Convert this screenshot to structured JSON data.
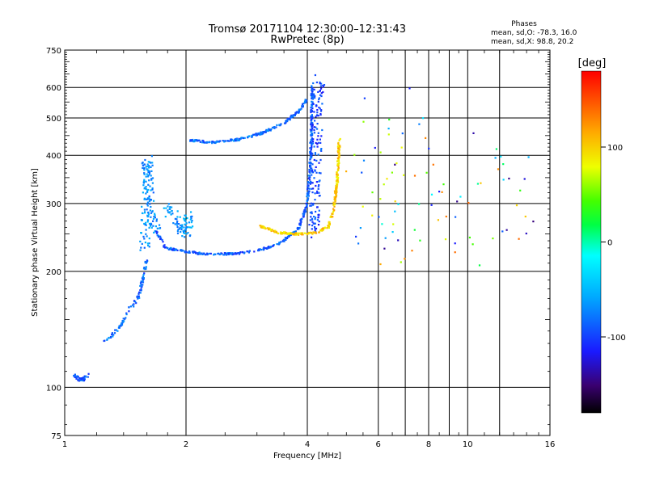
{
  "chart_data": {
    "type": "scatter",
    "title": "Tromsø 20171104 12:30:00–12:31:43",
    "subtitle": "RwPretec (8p)",
    "xlabel": "Frequency [MHz]",
    "ylabel": "Stationary phase Virtual Height [km]",
    "xscale": "log",
    "yscale": "log",
    "xlim": [
      1,
      16
    ],
    "ylim": [
      75,
      750
    ],
    "xticks": [
      1,
      2,
      4,
      6,
      8,
      10,
      16
    ],
    "xtick_labels": [
      "1",
      "2",
      "4",
      "6",
      "8",
      "10",
      "16"
    ],
    "x_minor_gridlines": [
      7,
      9,
      12
    ],
    "yticks": [
      75,
      100,
      200,
      300,
      400,
      500,
      600,
      750
    ],
    "ytick_labels": [
      "75",
      "100",
      "200",
      "300",
      "400",
      "500",
      "600",
      "750"
    ],
    "grid": true,
    "phase_stats": {
      "heading": "Phases",
      "line_o": "mean, sd,O: -78.3, 16.0",
      "line_x": "mean, sd,X:  98.8, 20.2"
    },
    "colorbar": {
      "label": "[deg]",
      "range": [
        -180,
        180
      ],
      "ticks": [
        100,
        0,
        -100
      ],
      "tick_labels": [
        "100",
        "0",
        "-100"
      ]
    },
    "series": [
      {
        "name": "low-frequency E echoes",
        "trace": [
          [
            1.05,
            108
          ],
          [
            1.08,
            105
          ],
          [
            1.11,
            105
          ],
          [
            1.13,
            107
          ],
          [
            1.15,
            108
          ]
        ],
        "phase": -95,
        "jitter": 0.02,
        "count": 40
      },
      {
        "name": "E-layer cusp",
        "trace": [
          [
            1.25,
            132
          ],
          [
            1.3,
            135
          ],
          [
            1.38,
            145
          ],
          [
            1.45,
            160
          ],
          [
            1.52,
            170
          ],
          [
            1.56,
            190
          ],
          [
            1.6,
            215
          ]
        ],
        "phase": -85,
        "jitter": 0.015,
        "count": 90
      },
      {
        "name": "Es cloud ~1.6 MHz",
        "trace": [
          [
            1.58,
            230
          ],
          [
            1.6,
            300
          ],
          [
            1.6,
            390
          ],
          [
            1.63,
            300
          ],
          [
            1.68,
            250
          ]
        ],
        "phase": -70,
        "jitter": 0.06,
        "count": 150
      },
      {
        "name": "Es cloud ~1.9 MHz",
        "trace": [
          [
            1.78,
            300
          ],
          [
            1.85,
            280
          ],
          [
            1.92,
            265
          ],
          [
            2.0,
            250
          ],
          [
            2.03,
            280
          ]
        ],
        "phase": -65,
        "jitter": 0.06,
        "count": 80
      },
      {
        "name": "F-layer O-mode trace",
        "trace": [
          [
            1.68,
            255
          ],
          [
            1.78,
            230
          ],
          [
            1.95,
            226
          ],
          [
            2.2,
            222
          ],
          [
            2.6,
            222
          ],
          [
            3.0,
            226
          ],
          [
            3.4,
            236
          ],
          [
            3.8,
            258
          ],
          [
            4.0,
            300
          ],
          [
            4.08,
            400
          ],
          [
            4.1,
            520
          ],
          [
            4.12,
            620
          ]
        ],
        "phase": -90,
        "jitter": 0.012,
        "count": 420
      },
      {
        "name": "F-layer vertical O echoes",
        "trace": [
          [
            4.15,
            250
          ],
          [
            4.2,
            400
          ],
          [
            4.25,
            550
          ],
          [
            4.3,
            630
          ]
        ],
        "phase": -100,
        "jitter": 0.06,
        "count": 160
      },
      {
        "name": "F-layer X-mode trace",
        "trace": [
          [
            3.05,
            262
          ],
          [
            3.4,
            252
          ],
          [
            3.8,
            250
          ],
          [
            4.2,
            252
          ],
          [
            4.5,
            260
          ],
          [
            4.65,
            290
          ],
          [
            4.75,
            350
          ],
          [
            4.8,
            440
          ]
        ],
        "phase": 100,
        "jitter": 0.012,
        "count": 260
      },
      {
        "name": "upper F trace",
        "trace": [
          [
            2.05,
            438
          ],
          [
            2.3,
            432
          ],
          [
            2.7,
            440
          ],
          [
            3.1,
            458
          ],
          [
            3.5,
            485
          ],
          [
            3.8,
            520
          ],
          [
            4.0,
            560
          ]
        ],
        "phase": -85,
        "jitter": 0.012,
        "count": 240
      },
      {
        "name": "scattered interference",
        "trace": [
          [
            6.3,
            560
          ],
          [
            6.5,
            300
          ],
          [
            6.8,
            250
          ],
          [
            7.2,
            350
          ],
          [
            9.2,
            200
          ],
          [
            12,
            400
          ],
          [
            14.5,
            300
          ]
        ],
        "phase": 0,
        "jitter": 0.5,
        "count": 90
      }
    ]
  }
}
